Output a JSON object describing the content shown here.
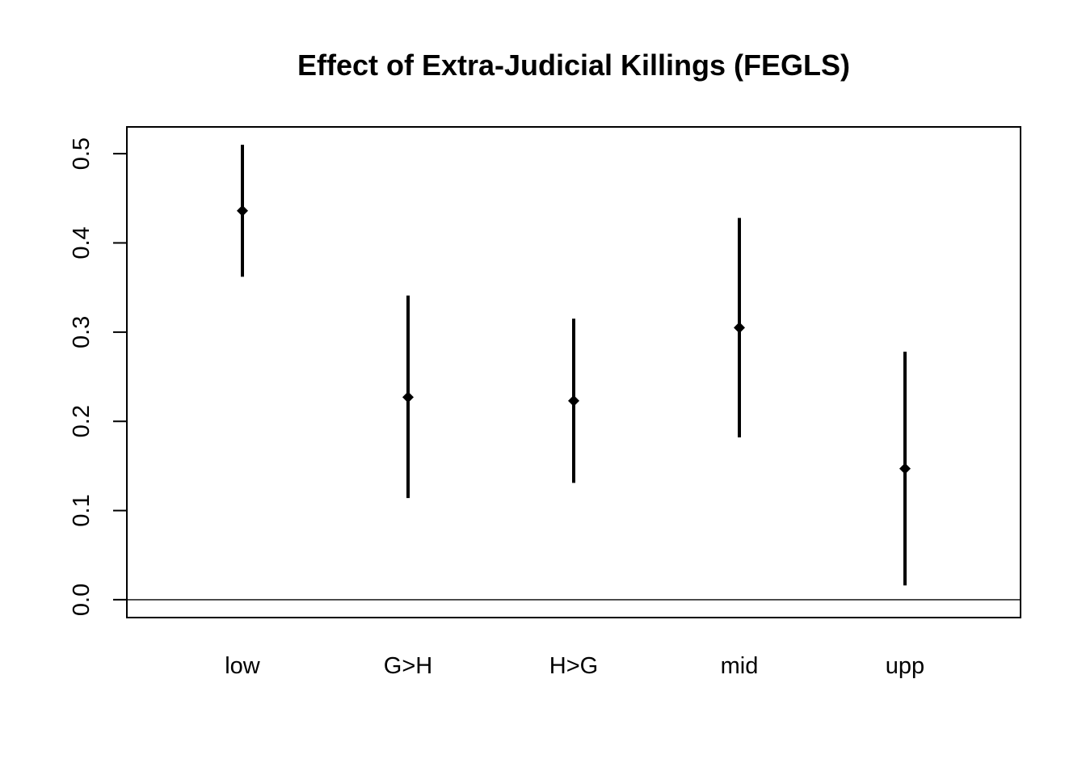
{
  "chart_data": {
    "type": "scatter",
    "title": "Effect of Extra-Judicial Killings (FEGLS)",
    "xlabel": "",
    "ylabel": "",
    "categories": [
      "low",
      "G>H",
      "H>G",
      "mid",
      "upp"
    ],
    "series": [
      {
        "estimate": [
          0.436,
          0.227,
          0.223,
          0.305,
          0.147
        ],
        "lower": [
          0.362,
          0.114,
          0.131,
          0.182,
          0.016
        ],
        "upper": [
          0.51,
          0.341,
          0.315,
          0.428,
          0.278
        ]
      }
    ],
    "ylim": [
      -0.02,
      0.53
    ],
    "yticks": [
      "0.0",
      "0.1",
      "0.2",
      "0.3",
      "0.4",
      "0.5"
    ],
    "reference_line": 0.0,
    "grid": false,
    "legend": "none",
    "colors": {
      "marks": "#000000",
      "background": "#ffffff"
    }
  }
}
